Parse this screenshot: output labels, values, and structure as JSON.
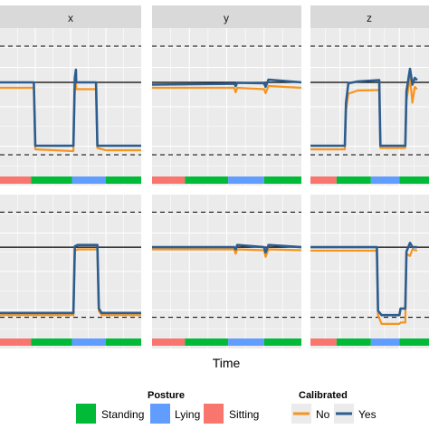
{
  "chart_data": {
    "type": "line",
    "xlabel": "Time",
    "facets": [
      "x",
      "y",
      "z"
    ],
    "reference_lines": {
      "solid": 1,
      "dashed": [
        1.8,
        -0.6
      ]
    },
    "ylim": [
      -1,
      2.2
    ],
    "xlim": [
      0,
      100
    ],
    "posture": {
      "title": "Posture",
      "levels": [
        {
          "name": "Standing",
          "color": "#00ba38"
        },
        {
          "name": "Lying",
          "color": "#619cff"
        },
        {
          "name": "Sitting",
          "color": "#f8766d"
        }
      ],
      "bar_segments": [
        {
          "posture": "Sitting",
          "x0": 0,
          "x1": 22
        },
        {
          "posture": "Standing",
          "x0": 22,
          "x1": 51
        },
        {
          "posture": "Lying",
          "x0": 51,
          "x1": 75
        },
        {
          "posture": "Standing",
          "x0": 75,
          "x1": 100
        }
      ]
    },
    "calibrated": {
      "title": "Calibrated",
      "levels": [
        {
          "name": "No",
          "color": "#f7941d"
        },
        {
          "name": "Yes",
          "color": "#2c5d8e"
        }
      ]
    },
    "panels": [
      {
        "row": 0,
        "facet": "x",
        "series": [
          {
            "name": "No",
            "points": [
              [
                0,
                0.88
              ],
              [
                24,
                0.88
              ],
              [
                25,
                -0.48
              ],
              [
                52,
                -0.52
              ],
              [
                53,
                1.0
              ],
              [
                53.8,
                1.02
              ],
              [
                54,
                0.85
              ],
              [
                68,
                0.85
              ],
              [
                69,
                -0.45
              ],
              [
                75,
                -0.5
              ],
              [
                100,
                -0.5
              ]
            ]
          },
          {
            "name": "Yes",
            "points": [
              [
                0,
                1.0
              ],
              [
                24,
                1.0
              ],
              [
                25,
                -0.4
              ],
              [
                52,
                -0.4
              ],
              [
                53,
                1.1
              ],
              [
                53.8,
                1.28
              ],
              [
                54,
                1.0
              ],
              [
                68,
                1.0
              ],
              [
                69,
                -0.4
              ],
              [
                75,
                -0.4
              ],
              [
                100,
                -0.4
              ]
            ]
          }
        ]
      },
      {
        "row": 0,
        "facet": "y",
        "series": [
          {
            "name": "No",
            "points": [
              [
                0,
                0.88
              ],
              [
                55,
                0.88
              ],
              [
                56,
                0.78
              ],
              [
                57,
                0.88
              ],
              [
                75,
                0.85
              ],
              [
                76,
                0.76
              ],
              [
                78,
                0.92
              ],
              [
                100,
                0.88
              ]
            ]
          },
          {
            "name": "Yes",
            "points": [
              [
                0,
                0.95
              ],
              [
                55,
                0.97
              ],
              [
                56,
                0.92
              ],
              [
                57,
                0.99
              ],
              [
                75,
                0.98
              ],
              [
                76,
                0.9
              ],
              [
                78,
                1.06
              ],
              [
                100,
                1.0
              ]
            ]
          }
        ]
      },
      {
        "row": 0,
        "facet": "z",
        "series": [
          {
            "name": "No",
            "points": [
              [
                0,
                -0.48
              ],
              [
                29,
                -0.48
              ],
              [
                30,
                0.38
              ],
              [
                32,
                0.75
              ],
              [
                40,
                0.82
              ],
              [
                58,
                0.83
              ],
              [
                59,
                -0.45
              ],
              [
                77,
                -0.45
              ],
              [
                80,
                -0.45
              ],
              [
                81,
                0.6
              ],
              [
                84,
                1.1
              ],
              [
                86,
                0.55
              ],
              [
                88,
                0.9
              ],
              [
                90,
                0.85
              ]
            ]
          },
          {
            "name": "Yes",
            "points": [
              [
                0,
                -0.4
              ],
              [
                29,
                -0.4
              ],
              [
                30,
                0.55
              ],
              [
                32,
                0.98
              ],
              [
                40,
                1.02
              ],
              [
                58,
                1.05
              ],
              [
                59,
                -0.4
              ],
              [
                77,
                -0.4
              ],
              [
                80,
                -0.4
              ],
              [
                81,
                0.8
              ],
              [
                84,
                1.3
              ],
              [
                86,
                0.95
              ],
              [
                88,
                1.1
              ],
              [
                90,
                1.05
              ]
            ]
          }
        ]
      },
      {
        "row": 1,
        "facet": "x",
        "series": [
          {
            "name": "No",
            "points": [
              [
                0,
                -0.55
              ],
              [
                52,
                -0.55
              ],
              [
                53,
                0.92
              ],
              [
                55,
                0.95
              ],
              [
                69,
                0.95
              ],
              [
                70,
                -0.45
              ],
              [
                72,
                -0.55
              ],
              [
                100,
                -0.55
              ]
            ]
          },
          {
            "name": "Yes",
            "points": [
              [
                0,
                -0.5
              ],
              [
                52,
                -0.5
              ],
              [
                53,
                1.02
              ],
              [
                55,
                1.05
              ],
              [
                69,
                1.05
              ],
              [
                70,
                -0.4
              ],
              [
                72,
                -0.5
              ],
              [
                100,
                -0.5
              ]
            ]
          }
        ]
      },
      {
        "row": 1,
        "facet": "y",
        "series": [
          {
            "name": "No",
            "points": [
              [
                0,
                0.95
              ],
              [
                55,
                0.95
              ],
              [
                56,
                0.85
              ],
              [
                57,
                0.95
              ],
              [
                75,
                0.93
              ],
              [
                76,
                0.78
              ],
              [
                78,
                0.95
              ],
              [
                100,
                0.93
              ]
            ]
          },
          {
            "name": "Yes",
            "points": [
              [
                0,
                1.0
              ],
              [
                55,
                1.0
              ],
              [
                56,
                0.95
              ],
              [
                57,
                1.05
              ],
              [
                75,
                1.0
              ],
              [
                76,
                0.88
              ],
              [
                78,
                1.05
              ],
              [
                100,
                1.0
              ]
            ]
          }
        ]
      },
      {
        "row": 1,
        "facet": "z",
        "series": [
          {
            "name": "No",
            "points": [
              [
                0,
                0.92
              ],
              [
                56,
                0.92
              ],
              [
                57,
                -0.55
              ],
              [
                60,
                -0.75
              ],
              [
                75,
                -0.75
              ],
              [
                76,
                -0.72
              ],
              [
                80,
                -0.72
              ],
              [
                81,
                0.85
              ],
              [
                84,
                0.8
              ],
              [
                86,
                0.95
              ],
              [
                90,
                0.92
              ]
            ]
          },
          {
            "name": "Yes",
            "points": [
              [
                0,
                1.0
              ],
              [
                56,
                1.0
              ],
              [
                57,
                -0.45
              ],
              [
                60,
                -0.55
              ],
              [
                75,
                -0.55
              ],
              [
                76,
                -0.4
              ],
              [
                80,
                -0.4
              ],
              [
                81,
                0.9
              ],
              [
                84,
                1.1
              ],
              [
                86,
                1.0
              ],
              [
                90,
                1.0
              ]
            ]
          }
        ]
      }
    ]
  }
}
